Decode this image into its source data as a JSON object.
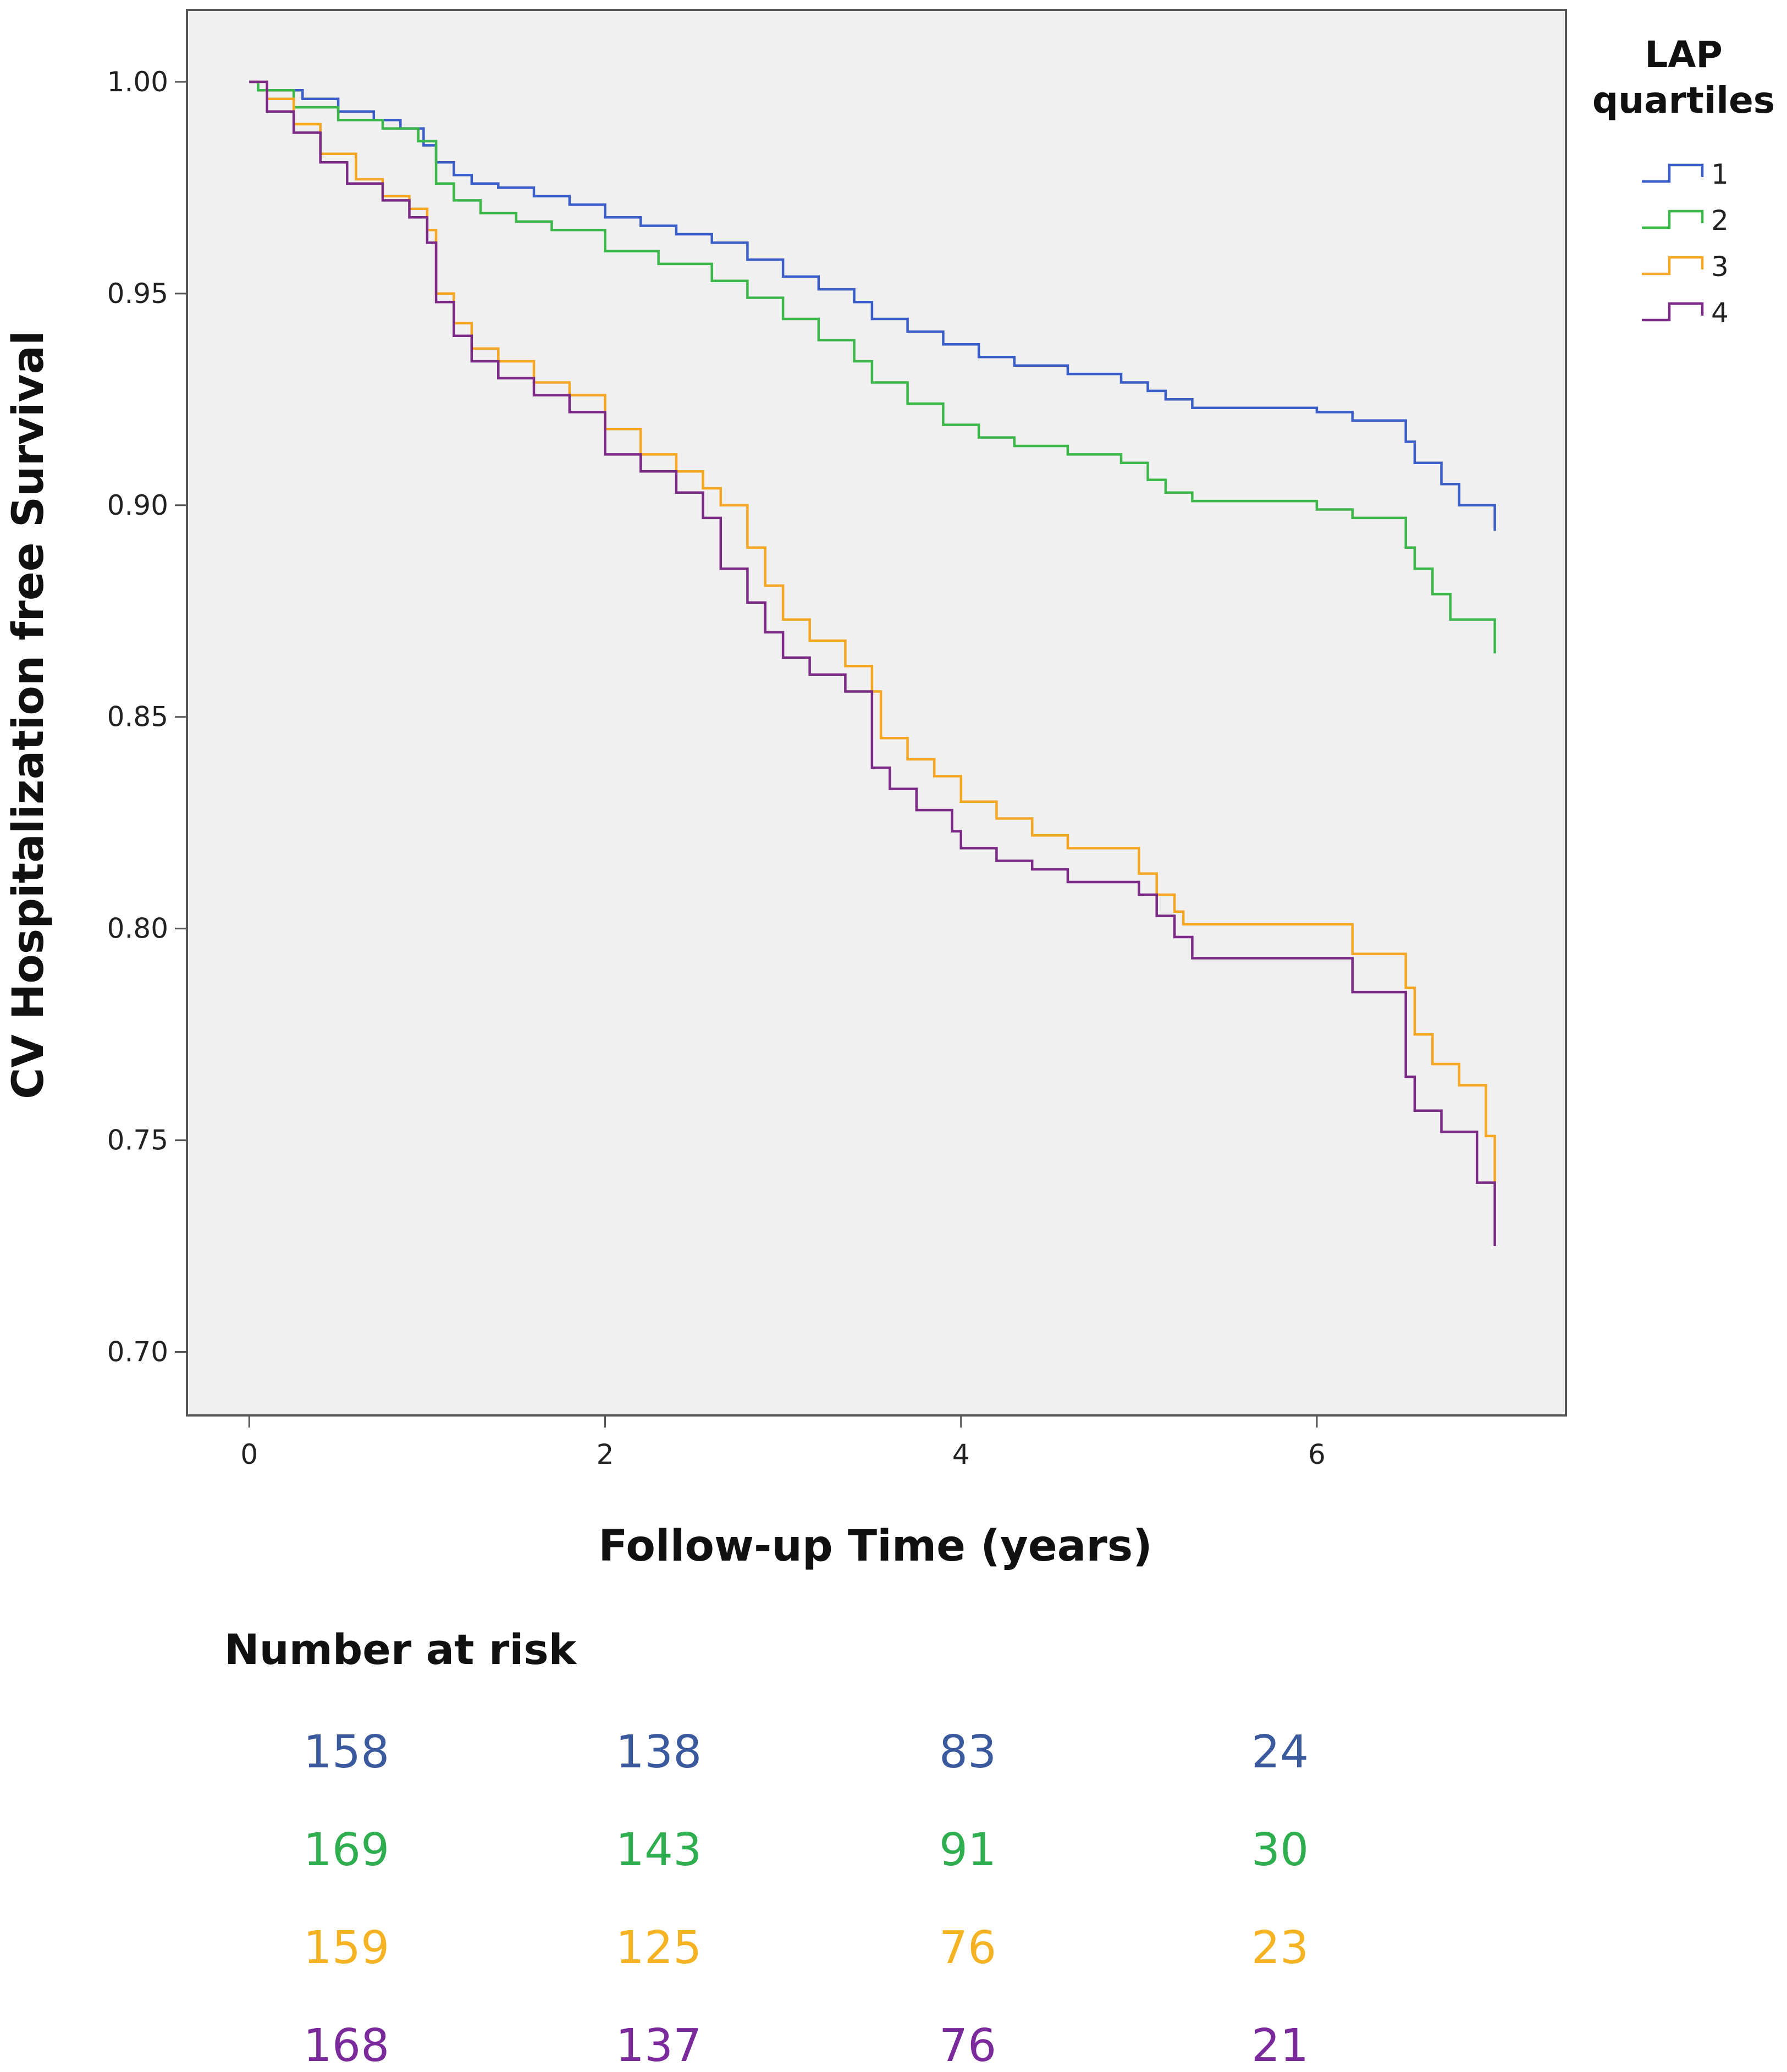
{
  "chart_data": {
    "type": "line",
    "step": true,
    "title": "",
    "xlabel": "Follow-up Time (years)",
    "ylabel": "CV Hospitalization free Survival",
    "xlim": [
      -0.35,
      7.4
    ],
    "ylim": [
      0.685,
      1.017
    ],
    "x_ticks": [
      0,
      2,
      4,
      6
    ],
    "x_tick_labels": [
      "0",
      "2",
      "4",
      "6"
    ],
    "y_ticks": [
      1.0,
      0.95,
      0.9,
      0.85,
      0.8,
      0.75,
      0.7
    ],
    "y_tick_labels": [
      "1.00",
      "0.95",
      "0.90",
      "0.85",
      "0.80",
      "0.75",
      "0.70"
    ],
    "grid": false,
    "background": "#f0f0f0",
    "legend": {
      "title_line1": "LAP",
      "title_line2": "quartiles",
      "position": "outside-top-right"
    },
    "series": [
      {
        "name": "1",
        "color": "#3b5ec9",
        "points": [
          [
            0,
            1.0
          ],
          [
            0.05,
            0.998
          ],
          [
            0.3,
            0.996
          ],
          [
            0.5,
            0.993
          ],
          [
            0.7,
            0.991
          ],
          [
            0.85,
            0.989
          ],
          [
            0.98,
            0.985
          ],
          [
            1.05,
            0.981
          ],
          [
            1.15,
            0.978
          ],
          [
            1.25,
            0.976
          ],
          [
            1.4,
            0.975
          ],
          [
            1.6,
            0.973
          ],
          [
            1.8,
            0.971
          ],
          [
            2.0,
            0.968
          ],
          [
            2.2,
            0.966
          ],
          [
            2.4,
            0.964
          ],
          [
            2.6,
            0.962
          ],
          [
            2.8,
            0.958
          ],
          [
            3.0,
            0.954
          ],
          [
            3.2,
            0.951
          ],
          [
            3.4,
            0.948
          ],
          [
            3.5,
            0.944
          ],
          [
            3.7,
            0.941
          ],
          [
            3.9,
            0.938
          ],
          [
            4.1,
            0.935
          ],
          [
            4.3,
            0.933
          ],
          [
            4.6,
            0.931
          ],
          [
            4.9,
            0.929
          ],
          [
            5.05,
            0.927
          ],
          [
            5.15,
            0.925
          ],
          [
            5.3,
            0.923
          ],
          [
            6.0,
            0.922
          ],
          [
            6.2,
            0.92
          ],
          [
            6.5,
            0.915
          ],
          [
            6.55,
            0.91
          ],
          [
            6.7,
            0.905
          ],
          [
            6.8,
            0.9
          ],
          [
            7.0,
            0.894
          ]
        ]
      },
      {
        "name": "2",
        "color": "#3cb84a",
        "points": [
          [
            0,
            1.0
          ],
          [
            0.05,
            0.998
          ],
          [
            0.25,
            0.994
          ],
          [
            0.5,
            0.991
          ],
          [
            0.75,
            0.989
          ],
          [
            0.95,
            0.986
          ],
          [
            1.05,
            0.976
          ],
          [
            1.15,
            0.972
          ],
          [
            1.3,
            0.969
          ],
          [
            1.5,
            0.967
          ],
          [
            1.7,
            0.965
          ],
          [
            2.0,
            0.96
          ],
          [
            2.3,
            0.957
          ],
          [
            2.6,
            0.953
          ],
          [
            2.8,
            0.949
          ],
          [
            3.0,
            0.944
          ],
          [
            3.2,
            0.939
          ],
          [
            3.4,
            0.934
          ],
          [
            3.5,
            0.929
          ],
          [
            3.7,
            0.924
          ],
          [
            3.9,
            0.919
          ],
          [
            4.1,
            0.916
          ],
          [
            4.3,
            0.914
          ],
          [
            4.6,
            0.912
          ],
          [
            4.9,
            0.91
          ],
          [
            5.05,
            0.906
          ],
          [
            5.15,
            0.903
          ],
          [
            5.3,
            0.901
          ],
          [
            6.0,
            0.899
          ],
          [
            6.2,
            0.897
          ],
          [
            6.5,
            0.89
          ],
          [
            6.55,
            0.885
          ],
          [
            6.65,
            0.879
          ],
          [
            6.75,
            0.873
          ],
          [
            7.0,
            0.865
          ]
        ]
      },
      {
        "name": "3",
        "color": "#f5a623",
        "points": [
          [
            0,
            1.0
          ],
          [
            0.1,
            0.996
          ],
          [
            0.25,
            0.99
          ],
          [
            0.4,
            0.983
          ],
          [
            0.6,
            0.977
          ],
          [
            0.75,
            0.973
          ],
          [
            0.9,
            0.97
          ],
          [
            1.0,
            0.965
          ],
          [
            1.05,
            0.95
          ],
          [
            1.15,
            0.943
          ],
          [
            1.25,
            0.937
          ],
          [
            1.4,
            0.934
          ],
          [
            1.6,
            0.929
          ],
          [
            1.8,
            0.926
          ],
          [
            2.0,
            0.918
          ],
          [
            2.2,
            0.912
          ],
          [
            2.4,
            0.908
          ],
          [
            2.55,
            0.904
          ],
          [
            2.65,
            0.9
          ],
          [
            2.8,
            0.89
          ],
          [
            2.9,
            0.881
          ],
          [
            3.0,
            0.873
          ],
          [
            3.15,
            0.868
          ],
          [
            3.35,
            0.862
          ],
          [
            3.5,
            0.856
          ],
          [
            3.55,
            0.845
          ],
          [
            3.7,
            0.84
          ],
          [
            3.85,
            0.836
          ],
          [
            4.0,
            0.83
          ],
          [
            4.2,
            0.826
          ],
          [
            4.4,
            0.822
          ],
          [
            4.6,
            0.819
          ],
          [
            5.0,
            0.813
          ],
          [
            5.1,
            0.808
          ],
          [
            5.2,
            0.804
          ],
          [
            5.25,
            0.801
          ],
          [
            6.2,
            0.794
          ],
          [
            6.5,
            0.786
          ],
          [
            6.55,
            0.775
          ],
          [
            6.65,
            0.768
          ],
          [
            6.8,
            0.763
          ],
          [
            6.95,
            0.751
          ],
          [
            7.0,
            0.74
          ]
        ]
      },
      {
        "name": "4",
        "color": "#7b2a86",
        "points": [
          [
            0,
            1.0
          ],
          [
            0.1,
            0.993
          ],
          [
            0.25,
            0.988
          ],
          [
            0.4,
            0.981
          ],
          [
            0.55,
            0.976
          ],
          [
            0.75,
            0.972
          ],
          [
            0.9,
            0.968
          ],
          [
            1.0,
            0.962
          ],
          [
            1.05,
            0.948
          ],
          [
            1.15,
            0.94
          ],
          [
            1.25,
            0.934
          ],
          [
            1.4,
            0.93
          ],
          [
            1.6,
            0.926
          ],
          [
            1.8,
            0.922
          ],
          [
            2.0,
            0.912
          ],
          [
            2.2,
            0.908
          ],
          [
            2.4,
            0.903
          ],
          [
            2.55,
            0.897
          ],
          [
            2.65,
            0.885
          ],
          [
            2.8,
            0.877
          ],
          [
            2.9,
            0.87
          ],
          [
            3.0,
            0.864
          ],
          [
            3.15,
            0.86
          ],
          [
            3.35,
            0.856
          ],
          [
            3.5,
            0.838
          ],
          [
            3.6,
            0.833
          ],
          [
            3.75,
            0.828
          ],
          [
            3.95,
            0.823
          ],
          [
            4.0,
            0.819
          ],
          [
            4.2,
            0.816
          ],
          [
            4.4,
            0.814
          ],
          [
            4.6,
            0.811
          ],
          [
            5.0,
            0.808
          ],
          [
            5.1,
            0.803
          ],
          [
            5.2,
            0.798
          ],
          [
            5.3,
            0.793
          ],
          [
            6.2,
            0.785
          ],
          [
            6.5,
            0.765
          ],
          [
            6.55,
            0.757
          ],
          [
            6.7,
            0.752
          ],
          [
            6.9,
            0.74
          ],
          [
            7.0,
            0.725
          ]
        ]
      }
    ],
    "risk_table": {
      "title": "Number at risk",
      "rows": [
        {
          "color": "#3b5a9e",
          "values": [
            "158",
            "138",
            "83",
            "24"
          ]
        },
        {
          "color": "#2fae4f",
          "values": [
            "169",
            "143",
            "91",
            "30"
          ]
        },
        {
          "color": "#f5b323",
          "values": [
            "159",
            "125",
            "76",
            "23"
          ]
        },
        {
          "color": "#7b2a9c",
          "values": [
            "168",
            "137",
            "76",
            "21"
          ]
        }
      ]
    }
  }
}
